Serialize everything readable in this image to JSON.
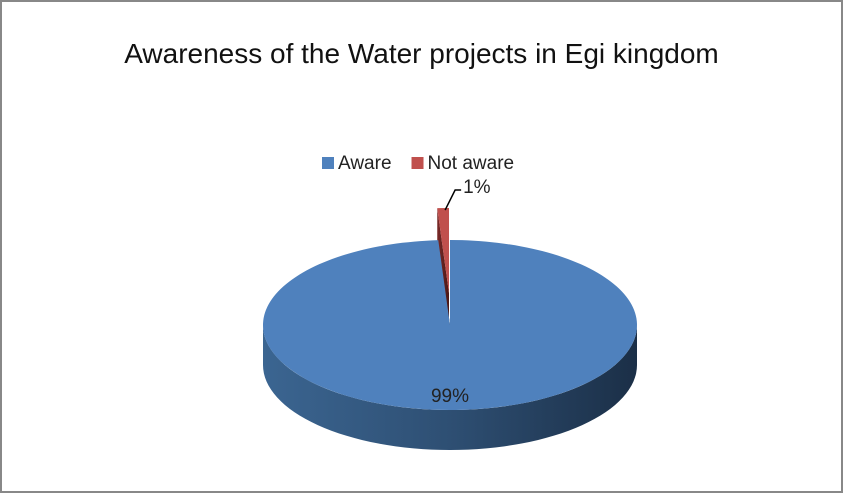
{
  "chart_data": {
    "type": "pie",
    "title": "Awareness of the Water projects in Egi kingdom",
    "categories": [
      "Aware",
      "Not aware"
    ],
    "values": [
      99,
      1
    ],
    "value_labels": [
      "99%",
      "1%"
    ],
    "colors": [
      "#4f81bd",
      "#c0504d"
    ],
    "legend": "top",
    "explode": [
      false,
      true
    ]
  }
}
